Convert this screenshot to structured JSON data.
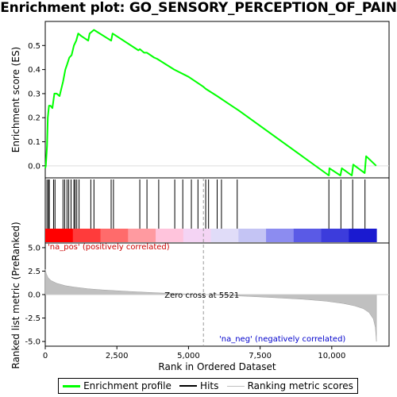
{
  "title": "Enrichment plot: GO_SENSORY_PERCEPTION_OF_PAIN",
  "chart_data": {
    "type": "line",
    "panels": {
      "enrichment": {
        "ylabel": "Enrichment score (ES)",
        "ylim": [
          -0.05,
          0.6
        ],
        "yticks": [
          "0.0",
          "0.1",
          "0.2",
          "0.3",
          "0.4",
          "0.5"
        ],
        "ytick_values": [
          0.0,
          0.1,
          0.2,
          0.3,
          0.4,
          0.5
        ],
        "series": [
          {
            "name": "Enrichment profile",
            "color": "#00ff00",
            "x": [
              0,
              20,
              60,
              90,
              130,
              180,
              250,
              320,
              400,
              500,
              620,
              700,
              760,
              840,
              920,
              1000,
              1080,
              1150,
              1250,
              1500,
              1550,
              1700,
              2300,
              2350,
              3250,
              3300,
              3450,
              3550,
              3800,
              3900,
              4500,
              5000,
              5500,
              5600,
              6000,
              6500,
              6750,
              9900,
              9920,
              10300,
              10350,
              10700,
              10750,
              11150,
              11200,
              11550
            ],
            "y": [
              -0.01,
              0.0,
              0.08,
              0.2,
              0.25,
              0.25,
              0.24,
              0.3,
              0.3,
              0.29,
              0.35,
              0.4,
              0.42,
              0.45,
              0.46,
              0.5,
              0.52,
              0.55,
              0.54,
              0.52,
              0.55,
              0.565,
              0.52,
              0.55,
              0.48,
              0.485,
              0.47,
              0.47,
              0.45,
              0.445,
              0.4,
              0.37,
              0.33,
              0.32,
              0.29,
              0.25,
              0.23,
              -0.04,
              -0.01,
              -0.04,
              -0.01,
              -0.04,
              0.005,
              -0.03,
              0.04,
              0.0
            ]
          }
        ]
      },
      "hits": {
        "name": "Hits",
        "positions": [
          60,
          110,
          140,
          290,
          340,
          620,
          680,
          760,
          820,
          900,
          1000,
          1040,
          1100,
          1180,
          1590,
          1700,
          2300,
          2380,
          3300,
          3550,
          3960,
          4520,
          4800,
          5100,
          5330,
          5600,
          5700,
          6000,
          6150,
          6700,
          9900,
          10320,
          10730,
          11160
        ]
      },
      "ranked_metric": {
        "name": "Ranking metric scores",
        "ylabel": "Ranked list metric (PreRanked)",
        "ylim": [
          -5.5,
          5.5
        ],
        "yticks": [
          "-5.0",
          "-2.5",
          "0.0",
          "2.5",
          "5.0"
        ],
        "ytick_values": [
          -5.0,
          -2.5,
          0.0,
          2.5,
          5.0
        ],
        "x": [
          0,
          40,
          100,
          200,
          400,
          700,
          1000,
          1500,
          2000,
          3000,
          4000,
          5000,
          5521,
          6000,
          7000,
          8000,
          9000,
          9800,
          10400,
          10800,
          11100,
          11300,
          11450,
          11520,
          11560
        ],
        "y": [
          2.7,
          2.2,
          1.8,
          1.5,
          1.2,
          0.95,
          0.8,
          0.62,
          0.5,
          0.32,
          0.18,
          0.06,
          0.0,
          -0.06,
          -0.18,
          -0.33,
          -0.5,
          -0.7,
          -0.95,
          -1.2,
          -1.5,
          -1.9,
          -2.6,
          -3.5,
          -5.0
        ]
      }
    },
    "xlabel": "Rank in Ordered Dataset",
    "xlim": [
      0,
      12000
    ],
    "xticks": [
      "0",
      "2,500",
      "5,000",
      "7,500",
      "10,000"
    ],
    "xtick_values": [
      0,
      2500,
      5000,
      7500,
      10000
    ],
    "heatmap_band_colors": [
      "#ff0000",
      "#ff3b3b",
      "#ff6b6b",
      "#ff9aa0",
      "#ffc4dc",
      "#f4d4f4",
      "#e0dcf8",
      "#c4c4f4",
      "#8c8cf0",
      "#5a5ae6",
      "#3c3cdc",
      "#1a1ad0"
    ],
    "annotations": {
      "pos_label": "'na_pos' (positively correlated)",
      "neg_label": "'na_neg' (negatively correlated)",
      "zero_cross": "Zero cross at 5521",
      "zero_cross_value": 5521
    },
    "colors": {
      "profile": "#00ff00",
      "metric_fill": "#c0c0c0",
      "pos_label": "#cc0000",
      "neg_label": "#0000cc"
    },
    "legend": [
      {
        "name": "Enrichment profile",
        "kind": "profile"
      },
      {
        "name": "Hits",
        "kind": "hits"
      },
      {
        "name": "Ranking metric scores",
        "kind": "metric"
      }
    ]
  }
}
